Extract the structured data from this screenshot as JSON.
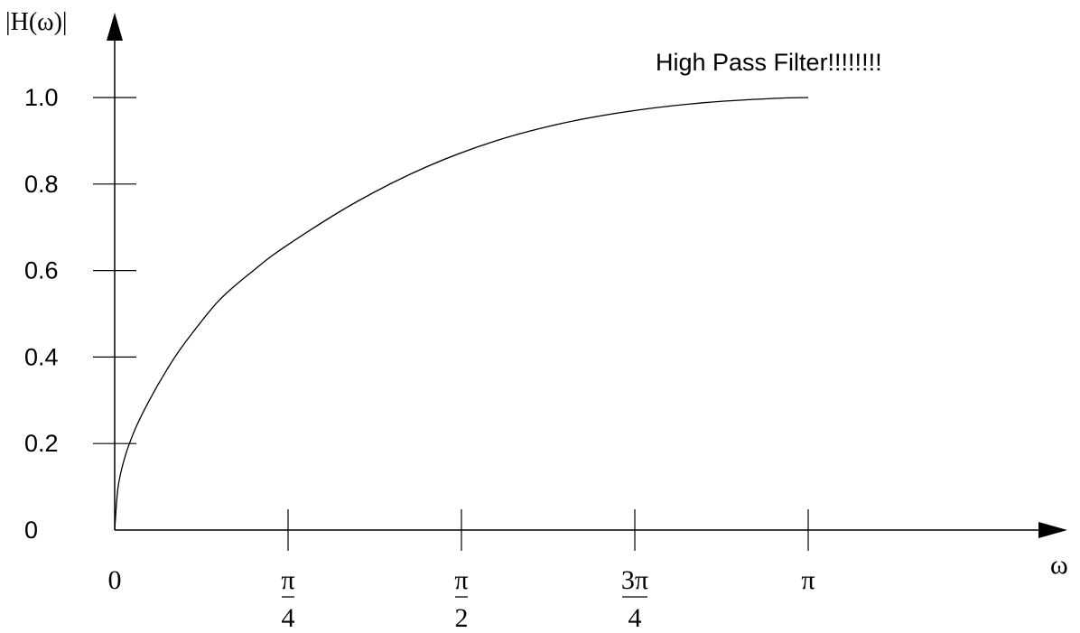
{
  "chart_data": {
    "type": "line",
    "ylabel": "|H(ω)|",
    "xlabel": "ω",
    "annotation": "High Pass Filter!!!!!!!!",
    "xlim": [
      0,
      3.14159
    ],
    "ylim": [
      0,
      1.0
    ],
    "y_ticks": [
      {
        "value": 1.0,
        "label": "1.0"
      },
      {
        "value": 0.8,
        "label": "0.8"
      },
      {
        "value": 0.6,
        "label": "0.6"
      },
      {
        "value": 0.4,
        "label": "0.4"
      },
      {
        "value": 0.2,
        "label": "0.2"
      },
      {
        "value": 0,
        "label": "0"
      }
    ],
    "x_ticks": [
      {
        "value": 0,
        "num": "0",
        "den": ""
      },
      {
        "value": 0.7854,
        "num": "π",
        "den": "4"
      },
      {
        "value": 1.5708,
        "num": "π",
        "den": "2"
      },
      {
        "value": 2.3562,
        "num": "3π",
        "den": "4"
      },
      {
        "value": 3.1416,
        "num": "π",
        "den": ""
      }
    ],
    "series": [
      {
        "points": [
          [
            0,
            0
          ],
          [
            0.0157,
            0.1
          ],
          [
            0.0471,
            0.17
          ],
          [
            0.0942,
            0.235
          ],
          [
            0.157,
            0.3
          ],
          [
            0.2356,
            0.37
          ],
          [
            0.3142,
            0.43
          ],
          [
            0.4712,
            0.53
          ],
          [
            0.6283,
            0.6
          ],
          [
            0.7854,
            0.66
          ],
          [
            1.0996,
            0.76
          ],
          [
            1.4137,
            0.84
          ],
          [
            1.7279,
            0.9
          ],
          [
            2.042,
            0.942
          ],
          [
            2.3562,
            0.97
          ],
          [
            2.6704,
            0.988
          ],
          [
            2.9845,
            0.998
          ],
          [
            3.1416,
            1.0
          ]
        ]
      }
    ]
  }
}
